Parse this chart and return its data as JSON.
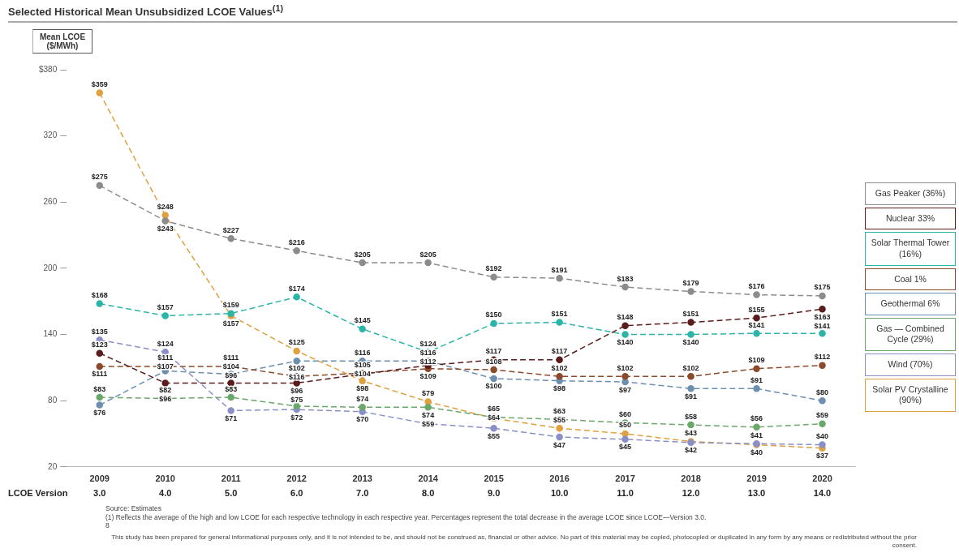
{
  "chart_data": {
    "type": "line",
    "title": "Selected Historical Mean Unsubsidized LCOE Values$^{(1)}$",
    "ylabel": "Mean LCOE ($/MWh)",
    "categories": [
      "2009",
      "2010",
      "2011",
      "2012",
      "2013",
      "2014",
      "2015",
      "2016",
      "2017",
      "2018",
      "2019",
      "2020"
    ],
    "ylim": [
      20,
      380
    ],
    "yticks": [
      20,
      80,
      140,
      200,
      260,
      320,
      {
        "value": 380,
        "label": "$380"
      }
    ],
    "grid": false,
    "legend": "right",
    "marker": "circle",
    "line_style": "dashed",
    "series": [
      {
        "name": "Gas Peaker (36%)",
        "color": "#8c8c8c",
        "values": [
          275,
          243,
          227,
          216,
          205,
          205,
          192,
          191,
          183,
          179,
          176,
          175
        ],
        "value_labels": [
          "$275",
          "$243",
          "$227",
          "$216",
          "$205",
          "$205",
          "$192",
          "$191",
          "$183",
          "$179",
          "$176",
          "$175"
        ]
      },
      {
        "name": "Nuclear 33%",
        "color": "#5a1c1c",
        "values": [
          123,
          96,
          96,
          96,
          104,
          112,
          117,
          117,
          148,
          151,
          155,
          163
        ],
        "value_labels": [
          "$123",
          "$96",
          "$96",
          "$96",
          "$104",
          "$112",
          "$117",
          "$117",
          "$148",
          "$151",
          "$155",
          "$163"
        ]
      },
      {
        "name": "Solar Thermal Tower (16%)",
        "color": "#2bb5a8",
        "values": [
          168,
          157,
          159,
          174,
          145,
          124,
          150,
          151,
          140,
          140,
          141,
          141
        ],
        "value_labels": [
          "$168",
          "$157",
          "$159",
          "$174",
          "$145",
          "$124",
          "$150",
          "$151",
          "$140",
          "$140",
          "$141",
          "$141"
        ]
      },
      {
        "name": "Coal 1%",
        "color": "#8b4a2b",
        "values": [
          111,
          111,
          111,
          102,
          105,
          109,
          108,
          102,
          102,
          102,
          109,
          112
        ],
        "value_labels": [
          "$111",
          "$111",
          "$111",
          "$102",
          "$105",
          "$109",
          "$108",
          "$102",
          "$102",
          "$102",
          "$109",
          "$112"
        ]
      },
      {
        "name": "Geothermal 6%",
        "color": "#6c8fb0",
        "values": [
          76,
          107,
          104,
          116,
          116,
          116,
          100,
          98,
          97,
          91,
          91,
          80
        ],
        "value_labels": [
          "$76",
          "$107",
          "$104",
          "$116",
          "$116",
          "$116",
          "$100",
          "$98",
          "$97",
          "$91",
          "$91",
          "$80"
        ]
      },
      {
        "name": "Gas — Combined Cycle (29%)",
        "color": "#6aa86a",
        "values": [
          83,
          82,
          83,
          75,
          74,
          74,
          65,
          63,
          60,
          58,
          56,
          59
        ],
        "value_labels": [
          "$83",
          "$82",
          "$83",
          "$75",
          "$74",
          "$74",
          "$65",
          "$63",
          "$60",
          "$58",
          "$56",
          "$59"
        ]
      },
      {
        "name": "Wind (70%)",
        "color": "#8a8fc8",
        "values": [
          135,
          124,
          71,
          72,
          70,
          59,
          55,
          47,
          45,
          42,
          41,
          40
        ],
        "value_labels": [
          "$135",
          "$124",
          "$71",
          "$72",
          "$70",
          "$59",
          "$55",
          "$47",
          "$45",
          "$42",
          "$41",
          "$40"
        ]
      },
      {
        "name": "Solar PV Crystalline (90%)",
        "color": "#e0a040",
        "values": [
          359,
          248,
          157,
          125,
          98,
          79,
          64,
          55,
          50,
          43,
          40,
          37
        ],
        "value_labels": [
          "$359",
          "$248",
          "$157",
          "$125",
          "$98",
          "$79",
          "$64",
          "$55",
          "$50",
          "$43",
          "$40",
          "$37"
        ]
      }
    ],
    "annotations": [
      "LCOE Version",
      "3.0",
      "4.0",
      "5.0",
      "6.0",
      "7.0",
      "8.0",
      "9.0",
      "10.0",
      "11.0",
      "12.0",
      "13.0",
      "14.0",
      "Source: Estimates",
      "(1) Reflects the average of the high and low LCOE for each respective technology in each respective year. Percentages represent the total decrease in the average LCOE since LCOE—Version 3.0.",
      "8",
      "This study has been prepared for general informational purposes only, and it is not intended to be, and should not be construed as, financial or other advice. No part of this material may be copied, photocopied or duplicated in any form by any means or redistributed without the prior consent."
    ]
  }
}
